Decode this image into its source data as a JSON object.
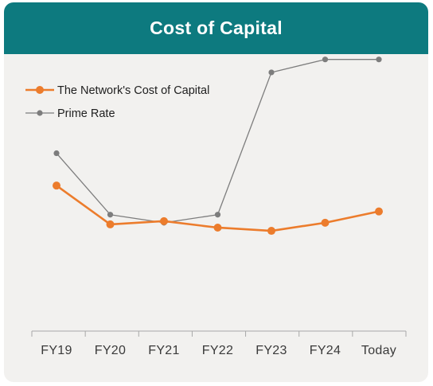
{
  "header": {
    "title": "Cost of Capital"
  },
  "colors": {
    "header_bg": "#0d7a7f",
    "card_bg": "#f2f1ef",
    "network": "#ec7c2c",
    "prime": "#7d7d7d",
    "axis": "#a8a8a8"
  },
  "chart_data": {
    "type": "line",
    "title": "Cost of Capital",
    "categories": [
      "FY19",
      "FY20",
      "FY21",
      "FY22",
      "FY23",
      "FY24",
      "Today"
    ],
    "ylim": [
      0,
      9.5
    ],
    "grid": false,
    "legend": "top-left",
    "series": [
      {
        "name": "The Network's Cost of Capital",
        "values": [
          4.5,
          3.3,
          3.4,
          3.2,
          3.1,
          3.35,
          3.7
        ]
      },
      {
        "name": "Prime Rate",
        "values": [
          5.5,
          3.6,
          3.35,
          3.6,
          8.0,
          8.4,
          8.4
        ]
      }
    ]
  }
}
